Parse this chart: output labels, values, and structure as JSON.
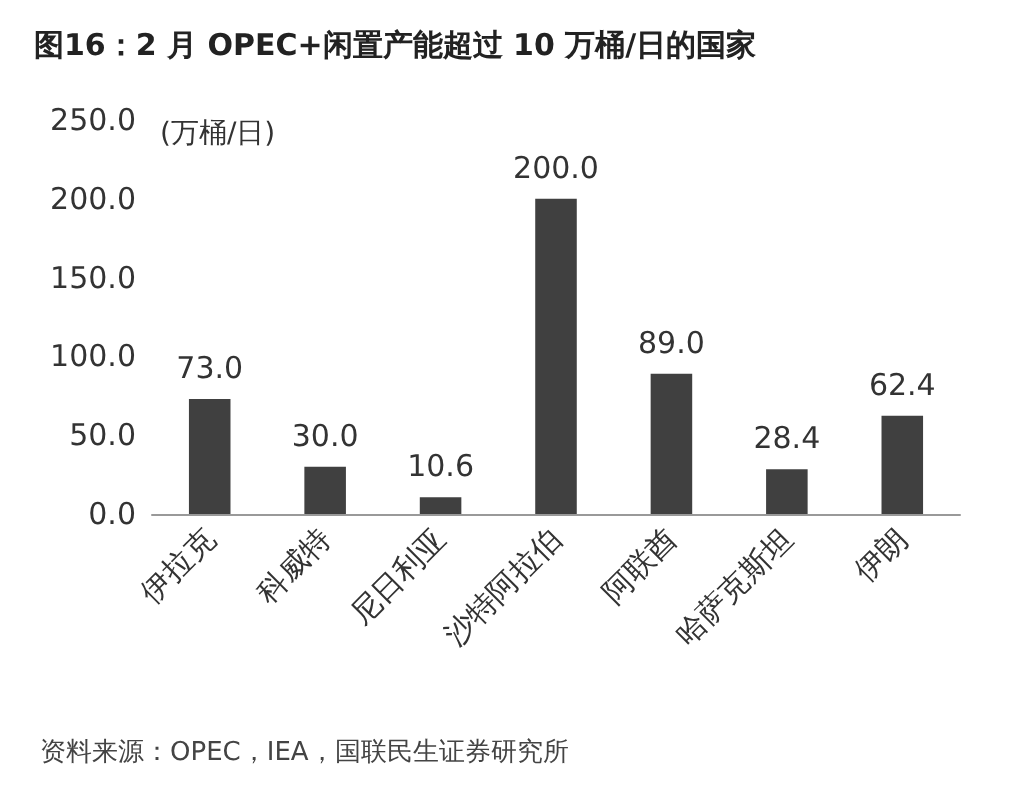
{
  "chart_data": {
    "type": "bar",
    "title": "图16：2 月 OPEC+闲置产能超过 10 万桶/日的国家",
    "ylabel": "(万桶/日)",
    "categories": [
      "伊拉克",
      "科威特",
      "尼日利亚",
      "沙特阿拉伯",
      "阿联酋",
      "哈萨克斯坦",
      "伊朗"
    ],
    "values": [
      73.0,
      30.0,
      10.6,
      200.0,
      89.0,
      28.4,
      62.4
    ],
    "value_labels": [
      "73.0",
      "30.0",
      "10.6",
      "200.0",
      "89.0",
      "28.4",
      "62.4"
    ],
    "color": "#404040",
    "ylim": [
      0,
      250
    ],
    "yticks": [
      {
        "value": 0,
        "label": "0.0"
      },
      {
        "value": 50,
        "label": "50.0"
      },
      {
        "value": 100,
        "label": "100.0"
      },
      {
        "value": 150,
        "label": "150.0"
      },
      {
        "value": 200,
        "label": "200.0"
      },
      {
        "value": 250,
        "label": "250.0"
      }
    ],
    "grid": false,
    "annotations": [
      "资料来源：OPEC，IEA，国联民生证券研究所"
    ]
  }
}
